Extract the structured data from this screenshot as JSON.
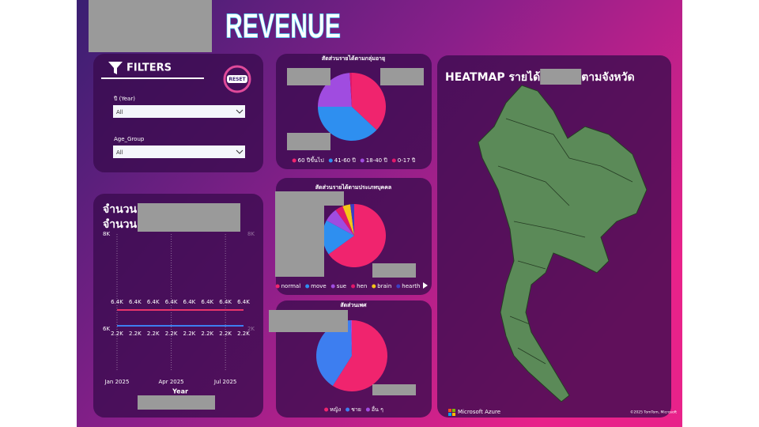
{
  "title": "REVENUE",
  "filters": {
    "heading": "FILTERS",
    "reset": "RESET",
    "fields": [
      {
        "label": "ปี (Year)",
        "value": "All"
      },
      {
        "label": "Age_Group",
        "value": "All"
      }
    ]
  },
  "line_chart": {
    "type": "line",
    "title_lines": [
      "จำนวน",
      "จำนวน"
    ],
    "x_title": "Year",
    "categories": [
      "Jan 2025",
      null,
      null,
      "Apr 2025",
      null,
      null,
      "Jul 2025",
      null
    ],
    "ylim": [
      5100,
      8000
    ],
    "yticks": [
      {
        "value": 8000,
        "label": "8K"
      },
      {
        "value": 6000,
        "label": "6K"
      }
    ],
    "y2lim": [
      -700,
      8000
    ],
    "y2ticks": [
      {
        "value": 8000,
        "label": "8K"
      },
      {
        "value": 2000,
        "label": "2K"
      }
    ],
    "series": [
      {
        "color": "#e8356b",
        "values": [
          6400,
          6400,
          6400,
          6400,
          6400,
          6400,
          6400,
          6400
        ],
        "value_labels": [
          "6.4K",
          "6.4K",
          "6.4K",
          "6.4K",
          "6.4K",
          "6.4K",
          "6.4K",
          "6.4K"
        ]
      },
      {
        "color": "#3d7ef0",
        "axis": "y2",
        "values": [
          2200,
          2200,
          2200,
          2200,
          2200,
          2200,
          2200,
          2200
        ],
        "value_labels": [
          "2.2K",
          "2.2K",
          "2.2K",
          "2.2K",
          "2.2K",
          "2.2K",
          "2.2K",
          "2.2K"
        ]
      }
    ]
  },
  "age_pie": {
    "type": "pie",
    "title": "สัดส่วนรายได้ตามกลุ่มอายุ",
    "categories": [
      "60 ปีขึ้นไป",
      "41-60 ปี",
      "18-40 ปี",
      "0-17 ปี"
    ],
    "values": [
      37,
      38,
      24,
      1
    ],
    "colors": [
      "#f0246e",
      "#2e8ff0",
      "#a04ce0",
      "#e0186a"
    ]
  },
  "person_pie": {
    "type": "pie",
    "title": "สัดส่วนรายได้ตามประเภทบุคคล",
    "categories": [
      "normal",
      "move",
      "sue",
      "hen",
      "brain",
      "hearth"
    ],
    "values": [
      65,
      18,
      7,
      4,
      4,
      2
    ],
    "colors": [
      "#f0246e",
      "#2e8ff0",
      "#a04ce0",
      "#e0186a",
      "#f5c518",
      "#3b3fc4"
    ]
  },
  "gender_pie": {
    "type": "pie",
    "title": "สัดส่วนเพศ",
    "categories": [
      "หญิง",
      "ชาย",
      "อื่น ๆ"
    ],
    "values": [
      59,
      40.5,
      0.5
    ],
    "colors": [
      "#f0246e",
      "#3d7ef0",
      "#a04ce0"
    ]
  },
  "map": {
    "title_parts": [
      "HEATMAP รายได้",
      "ตามจังหวัด"
    ],
    "logo": "Microsoft Azure",
    "credit": "©2025 TomTom, Microsoft"
  }
}
